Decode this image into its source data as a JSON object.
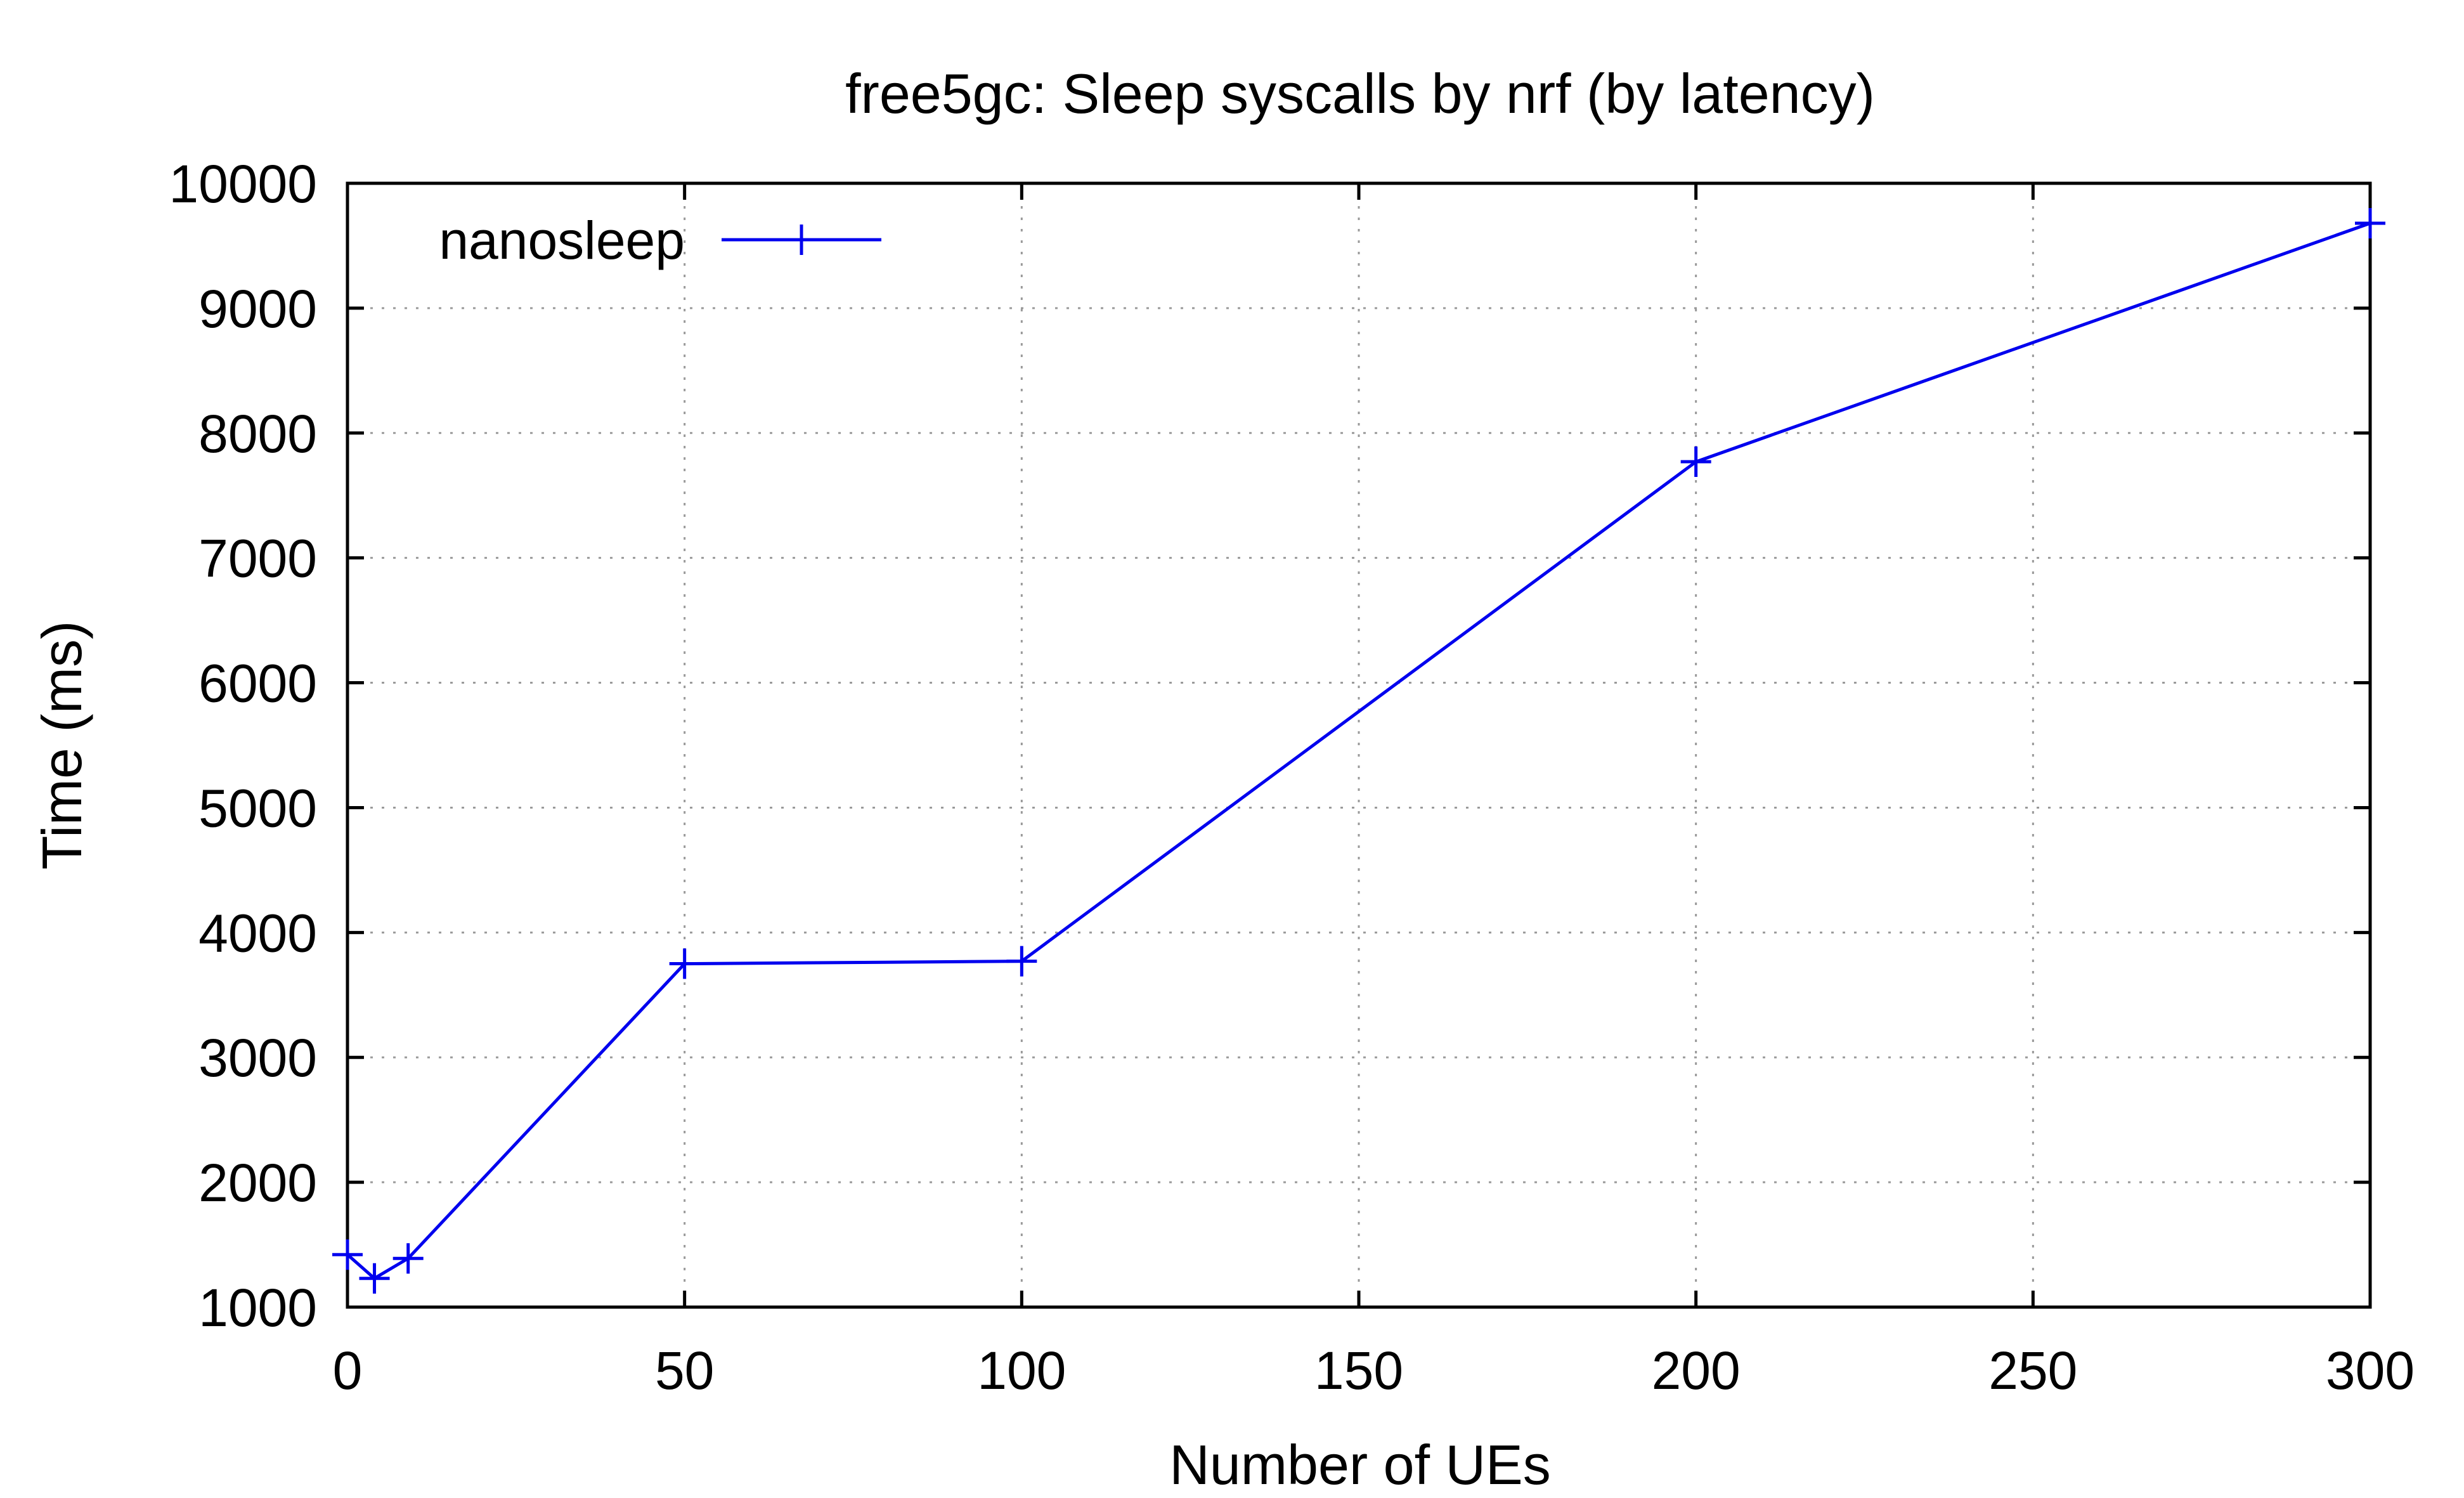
{
  "chart_data": {
    "type": "line",
    "title": "free5gc: Sleep syscalls by nrf (by latency)",
    "xlabel": "Number of UEs",
    "ylabel": "Time (ms)",
    "xlim": [
      0,
      300
    ],
    "ylim": [
      1000,
      10000
    ],
    "xticks": [
      0,
      50,
      100,
      150,
      200,
      250,
      300
    ],
    "yticks": [
      1000,
      2000,
      3000,
      4000,
      5000,
      6000,
      7000,
      8000,
      9000,
      10000
    ],
    "grid": true,
    "legend_position": "top-left",
    "series": [
      {
        "name": "nanosleep",
        "color": "#0000ee",
        "marker": "plus",
        "x": [
          0,
          4,
          9,
          50,
          100,
          200,
          300
        ],
        "y": [
          1420,
          1230,
          1390,
          3750,
          3770,
          7770,
          9680
        ]
      }
    ]
  }
}
